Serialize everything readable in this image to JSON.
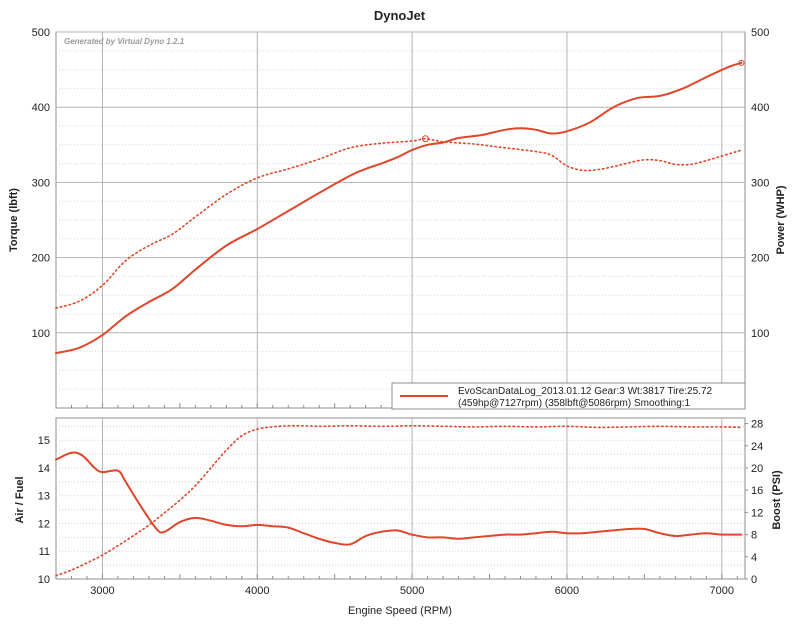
{
  "chart_data": [
    {
      "type": "line",
      "title": "DynoJet",
      "watermark": "Generated by Virtual Dyno 1.2.1",
      "ylabel": "Torque (lbft)",
      "y2label": "Power (WHP)",
      "xlim": [
        2700,
        7150
      ],
      "ylim": [
        0,
        500
      ],
      "y2lim": [
        0,
        500
      ],
      "xticks": [
        3000,
        4000,
        5000,
        6000,
        7000
      ],
      "yticks": [
        100,
        200,
        300,
        400,
        500
      ],
      "y2ticks": [
        100,
        200,
        300,
        400,
        500
      ],
      "legend": {
        "placement": "bottom-right",
        "line1": "EvoScanDataLog_2013.01.12 Gear:3 Wt:3817 Tire:25.72",
        "line2": "(459hp@7127rpm) (358lbft@5086rpm) Smoothing:1"
      },
      "peak_marker": {
        "x": 5086,
        "y": 358
      },
      "series": [
        {
          "role": "power",
          "style": "solid",
          "color": "#e0462a",
          "x": [
            2700,
            2850,
            3000,
            3150,
            3300,
            3450,
            3600,
            3800,
            4000,
            4200,
            4400,
            4600,
            4700,
            4800,
            4900,
            5000,
            5100,
            5200,
            5300,
            5450,
            5600,
            5700,
            5800,
            5900,
            6000,
            6150,
            6300,
            6450,
            6600,
            6750,
            6900,
            7050,
            7127
          ],
          "y": [
            73,
            80,
            97,
            122,
            141,
            158,
            184,
            216,
            238,
            262,
            286,
            309,
            318,
            325,
            333,
            343,
            350,
            353,
            359,
            363,
            370,
            372,
            370,
            365,
            368,
            380,
            400,
            412,
            415,
            425,
            440,
            454,
            459
          ]
        },
        {
          "role": "torque",
          "style": "dotted",
          "color": "#e0462a",
          "x": [
            2700,
            2850,
            3000,
            3150,
            3300,
            3450,
            3600,
            3800,
            4000,
            4200,
            4400,
            4600,
            4800,
            5000,
            5086,
            5200,
            5400,
            5600,
            5800,
            5900,
            6000,
            6100,
            6200,
            6300,
            6400,
            6500,
            6600,
            6700,
            6800,
            6900,
            7000,
            7127
          ],
          "y": [
            133,
            142,
            163,
            196,
            216,
            231,
            254,
            284,
            306,
            318,
            331,
            346,
            352,
            355,
            358,
            354,
            351,
            346,
            341,
            336,
            322,
            316,
            317,
            321,
            326,
            330,
            329,
            324,
            324,
            329,
            335,
            343
          ]
        }
      ]
    },
    {
      "type": "line",
      "xlabel": "Engine Speed (RPM)",
      "ylabel": "Air / Fuel",
      "y2label": "Boost (PSI)",
      "xlim": [
        2700,
        7150
      ],
      "ylim": [
        10,
        15.8
      ],
      "y2lim": [
        0,
        29
      ],
      "xticks": [
        3000,
        4000,
        5000,
        6000,
        7000
      ],
      "yticks": [
        10,
        11,
        12,
        13,
        14,
        15
      ],
      "y2ticks": [
        0,
        4,
        8,
        12,
        16,
        20,
        24,
        28
      ],
      "series": [
        {
          "role": "afr",
          "style": "solid",
          "color": "#e0462a",
          "axis": "left",
          "x": [
            2700,
            2800,
            2870,
            2950,
            3000,
            3100,
            3150,
            3250,
            3350,
            3400,
            3500,
            3600,
            3700,
            3800,
            3900,
            4000,
            4100,
            4200,
            4300,
            4400,
            4500,
            4600,
            4700,
            4800,
            4900,
            5000,
            5100,
            5200,
            5300,
            5400,
            5500,
            5600,
            5700,
            5800,
            5900,
            6000,
            6100,
            6200,
            6300,
            6400,
            6500,
            6600,
            6700,
            6800,
            6900,
            7000,
            7127
          ],
          "y": [
            14.3,
            14.55,
            14.45,
            14.0,
            13.85,
            13.9,
            13.5,
            12.6,
            11.8,
            11.7,
            12.05,
            12.2,
            12.1,
            11.95,
            11.9,
            11.95,
            11.9,
            11.85,
            11.65,
            11.45,
            11.3,
            11.25,
            11.55,
            11.7,
            11.75,
            11.6,
            11.5,
            11.5,
            11.45,
            11.5,
            11.55,
            11.6,
            11.6,
            11.65,
            11.7,
            11.65,
            11.65,
            11.7,
            11.75,
            11.8,
            11.8,
            11.65,
            11.55,
            11.6,
            11.65,
            11.6,
            11.6
          ]
        },
        {
          "role": "boost",
          "style": "dotted",
          "color": "#e0462a",
          "axis": "right",
          "x": [
            2700,
            2800,
            2900,
            3000,
            3100,
            3200,
            3300,
            3400,
            3500,
            3600,
            3700,
            3800,
            3900,
            4000,
            4100,
            4200,
            4300,
            4400,
            4600,
            4800,
            5000,
            5200,
            5400,
            5600,
            5800,
            6000,
            6200,
            6400,
            6600,
            6800,
            7000,
            7127
          ],
          "y": [
            0.6,
            1.6,
            2.9,
            4.3,
            6.0,
            7.8,
            9.7,
            11.9,
            14.2,
            16.8,
            20.0,
            23.2,
            25.8,
            27.0,
            27.4,
            27.6,
            27.6,
            27.5,
            27.6,
            27.5,
            27.6,
            27.5,
            27.4,
            27.5,
            27.4,
            27.5,
            27.3,
            27.4,
            27.5,
            27.4,
            27.4,
            27.3
          ]
        }
      ]
    }
  ]
}
